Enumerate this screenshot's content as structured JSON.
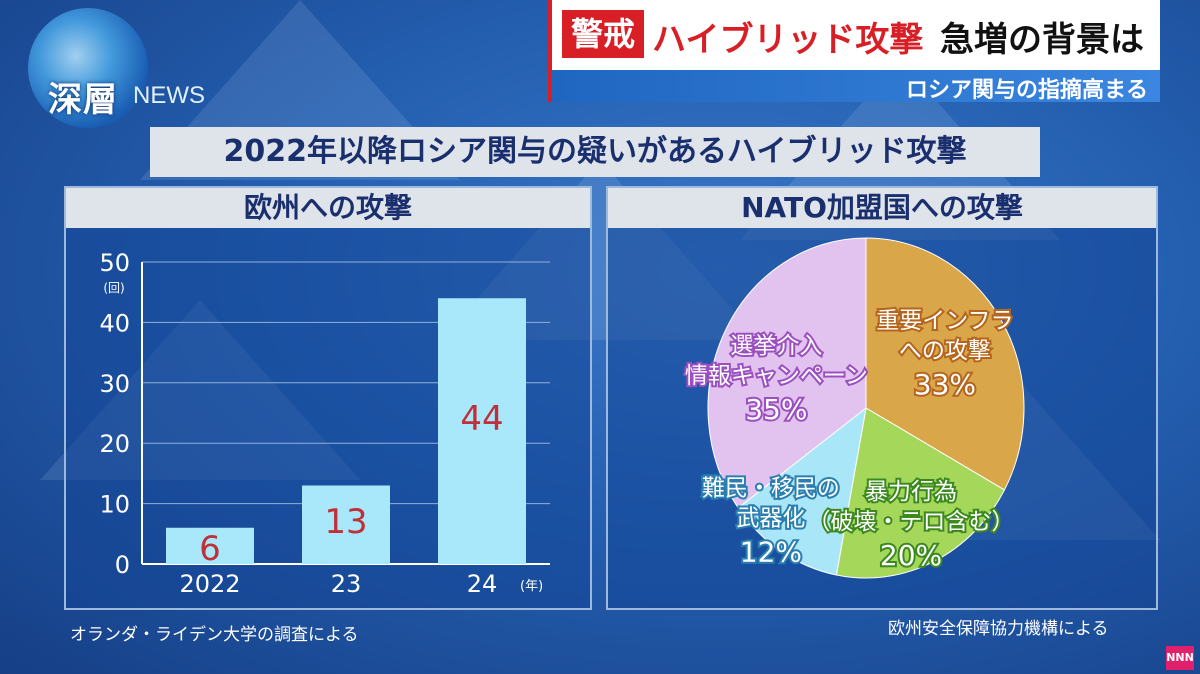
{
  "logo": {
    "main": "深層",
    "sub": "NEWS"
  },
  "headline": {
    "badge": "警戒",
    "red_text": "ハイブリッド攻撃",
    "black_text": "急増の背景は",
    "subtext": "ロシア関与の指摘高まる"
  },
  "title": "2022年以降ロシア関与の疑いがあるハイブリッド攻撃",
  "source_left": "オランダ・ライデン大学の調査による",
  "source_right": "欧州安全保障協力機構による",
  "corner_logo": "NNN",
  "chart_data": [
    {
      "type": "bar",
      "title": "欧州への攻撃",
      "categories": [
        "2022",
        "23",
        "24"
      ],
      "x_unit": "(年)",
      "values": [
        6,
        13,
        44
      ],
      "y_unit": "(回)",
      "ylim": [
        0,
        50
      ],
      "yticks": [
        0,
        10,
        20,
        30,
        40,
        50
      ],
      "grid": true,
      "bar_color": "#a9e8fb",
      "label_color": "#c0303a"
    },
    {
      "type": "pie",
      "title": "NATO加盟国への攻撃",
      "slices": [
        {
          "label_lines": [
            "重要インフラ",
            "への攻撃"
          ],
          "value": 33,
          "value_label": "33%",
          "color": "#d9a64a"
        },
        {
          "label_lines": [
            "暴力行為",
            "（破壊・テロ含む）"
          ],
          "value": 20,
          "value_label": "20%",
          "color": "#a5d85a"
        },
        {
          "label_lines": [
            "難民・移民の",
            "武器化"
          ],
          "value": 12,
          "value_label": "12%",
          "color": "#a9e6f7"
        },
        {
          "label_lines": [
            "選挙介入",
            "情報キャンペーン"
          ],
          "value": 35,
          "value_label": "35%",
          "color": "#e2c2ef"
        }
      ]
    }
  ]
}
